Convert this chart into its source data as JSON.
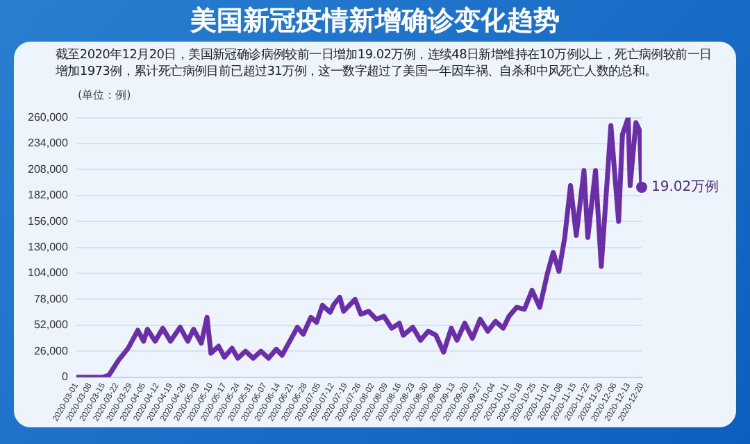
{
  "chart_data": {
    "type": "line",
    "title": "美国新冠疫情新增确诊变化趋势",
    "subtitle": "截至2020年12月20日，美国新冠确诊病例较前一日增加19.02万例，连续48日新增维持在10万例以上，死亡病例较前一日增加1973例，累计死亡病例目前已超过31万例，这一数字超过了美国一年因车祸、自杀和中风死亡人数的总和。",
    "ylabel": "(单位：例)",
    "x": [
      "2020-03-01",
      "2020-03-15",
      "2020-03-18",
      "2020-03-23",
      "2020-03-28",
      "2020-04-02",
      "2020-04-05",
      "2020-04-07",
      "2020-04-11",
      "2020-04-15",
      "2020-04-19",
      "2020-04-24",
      "2020-04-28",
      "2020-05-01",
      "2020-05-05",
      "2020-05-08",
      "2020-05-10",
      "2020-05-14",
      "2020-05-17",
      "2020-05-21",
      "2020-05-24",
      "2020-05-28",
      "2020-06-01",
      "2020-06-05",
      "2020-06-09",
      "2020-06-13",
      "2020-06-16",
      "2020-06-20",
      "2020-06-24",
      "2020-06-27",
      "2020-07-01",
      "2020-07-04",
      "2020-07-07",
      "2020-07-11",
      "2020-07-13",
      "2020-07-16",
      "2020-07-18",
      "2020-07-24",
      "2020-07-27",
      "2020-07-31",
      "2020-08-04",
      "2020-08-08",
      "2020-08-12",
      "2020-08-16",
      "2020-08-18",
      "2020-08-23",
      "2020-08-27",
      "2020-08-31",
      "2020-09-04",
      "2020-09-08",
      "2020-09-12",
      "2020-09-15",
      "2020-09-19",
      "2020-09-23",
      "2020-09-27",
      "2020-10-01",
      "2020-10-05",
      "2020-10-09",
      "2020-10-12",
      "2020-10-16",
      "2020-10-20",
      "2020-10-24",
      "2020-10-28",
      "2020-11-01",
      "2020-11-04",
      "2020-11-07",
      "2020-11-10",
      "2020-11-13",
      "2020-11-16",
      "2020-11-20",
      "2020-11-22",
      "2020-11-26",
      "2020-11-29",
      "2020-12-04",
      "2020-12-08",
      "2020-12-10",
      "2020-12-13",
      "2020-12-14",
      "2020-12-17",
      "2020-12-19",
      "2020-12-20"
    ],
    "series": [
      {
        "color": "#6a2fa8",
        "values": [
          0,
          0,
          2000,
          17000,
          29000,
          47000,
          36000,
          48000,
          36000,
          49000,
          36000,
          50000,
          36000,
          48000,
          34000,
          60000,
          24000,
          31000,
          20000,
          29000,
          19000,
          26000,
          19000,
          26000,
          19000,
          28000,
          22000,
          36000,
          50000,
          43000,
          60000,
          55000,
          72000,
          65000,
          73000,
          80000,
          66000,
          78000,
          63000,
          66000,
          58000,
          61000,
          49000,
          54000,
          42000,
          50000,
          37000,
          46000,
          42000,
          25000,
          49000,
          37000,
          54000,
          39000,
          58000,
          46000,
          56000,
          49000,
          61000,
          70000,
          68000,
          87000,
          70000,
          104000,
          125000,
          106000,
          140000,
          192000,
          142000,
          207000,
          140000,
          207000,
          111000,
          252000,
          156000,
          243000,
          260000,
          192000,
          255000,
          247000,
          190200
        ]
      }
    ],
    "annotations": [
      {
        "text": "19.02万例",
        "x": "2020-12-20",
        "y": 190200
      }
    ],
    "xlim": [
      "2020-03-01",
      "2020-12-20"
    ],
    "xticks": [
      "2020-03-01",
      "2020-03-08",
      "2020-03-15",
      "2020-03-22",
      "2020-03-29",
      "2020-04-05",
      "2020-04-12",
      "2020-04-19",
      "2020-04-26",
      "2020-05-03",
      "2020-05-10",
      "2020-05-17",
      "2020-05-24",
      "2020-05-31",
      "2020-06-07",
      "2020-06-14",
      "2020-06-21",
      "2020-06-28",
      "2020-07-05",
      "2020-07-12",
      "2020-07-19",
      "2020-07-26",
      "2020-08-02",
      "2020-08-09",
      "2020-08-16",
      "2020-08-23",
      "2020-08-30",
      "2020-09-06",
      "2020-09-13",
      "2020-09-20",
      "2020-09-27",
      "2020-10-04",
      "2020-10-11",
      "2020-10-18",
      "2020-10-25",
      "2020-11-01",
      "2020-11-08",
      "2020-11-15",
      "2020-11-22",
      "2020-11-29",
      "2020-12-06",
      "2020-12-13",
      "2020-12-20"
    ],
    "ylim": [
      0,
      260000
    ],
    "yticks": [
      {
        "value": 0,
        "label": "0"
      },
      {
        "value": 26000,
        "label": "26,000"
      },
      {
        "value": 52000,
        "label": "52,000"
      },
      {
        "value": 78000,
        "label": "78,000"
      },
      {
        "value": 104000,
        "label": "104,000"
      },
      {
        "value": 130000,
        "label": "130,000"
      },
      {
        "value": 156000,
        "label": "156,000"
      },
      {
        "value": 182000,
        "label": "182,000"
      },
      {
        "value": 208000,
        "label": "208,000"
      },
      {
        "value": 234000,
        "label": "234,000"
      },
      {
        "value": 260000,
        "label": "260,000"
      }
    ],
    "grid": "y",
    "legend": false,
    "marker": "none",
    "line_style": "solid"
  }
}
